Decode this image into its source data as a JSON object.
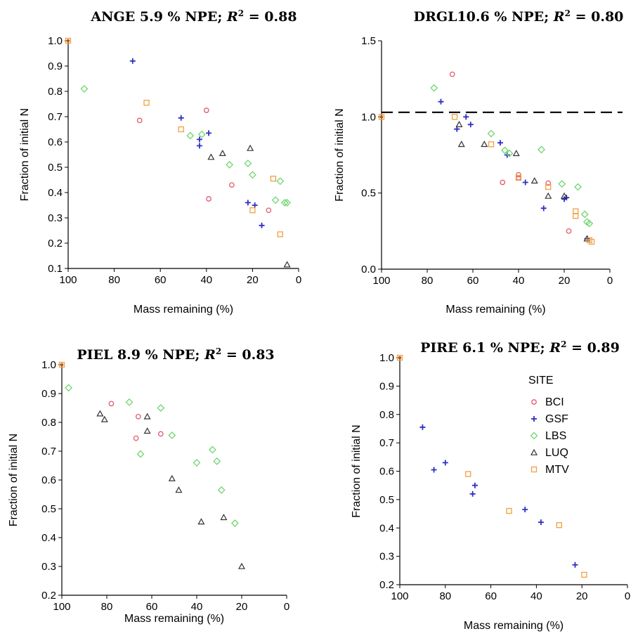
{
  "legend": {
    "title": "SITE",
    "entries": [
      {
        "name": "BCI",
        "color": "#e05a6e",
        "marker": "circle"
      },
      {
        "name": "GSF",
        "color": "#2f2fc4",
        "marker": "plus"
      },
      {
        "name": "LBS",
        "color": "#6fd66f",
        "marker": "diamond"
      },
      {
        "name": "LUQ",
        "color": "#333333",
        "marker": "triangle"
      },
      {
        "name": "MTV",
        "color": "#f0a040",
        "marker": "square"
      }
    ]
  },
  "chart_data": [
    {
      "type": "scatter",
      "title": "ANGE 5.9 % NPE; R² = 0.88",
      "title_parts": {
        "label": "ANGE 5.9 % NPE;",
        "r2_symbol": "R",
        "r2_sup": "2",
        "r2_eq": "= 0.88"
      },
      "xlabel": "Mass remaining (%)",
      "ylabel": "Fraction of initial N",
      "xlim": [
        100,
        0
      ],
      "ylim": [
        0.1,
        1.0
      ],
      "xticks": [
        100,
        80,
        60,
        40,
        20,
        0
      ],
      "xtick_labels": [
        "100",
        "80",
        "60",
        "40",
        "20",
        "0"
      ],
      "yticks": [
        0.1,
        0.2,
        0.3,
        0.4,
        0.5,
        0.6,
        0.7,
        0.8,
        0.9,
        1.0
      ],
      "ytick_labels": [
        "0.1",
        "0.2",
        "0.3",
        "0.4",
        "0.5",
        "0.6",
        "0.7",
        "0.8",
        "0.9",
        "1.0"
      ],
      "series": [
        {
          "name": "BCI",
          "points": [
            [
              69,
              0.685
            ],
            [
              40,
              0.725
            ],
            [
              39,
              0.375
            ],
            [
              29,
              0.43
            ],
            [
              13,
              0.33
            ]
          ]
        },
        {
          "name": "GSF",
          "points": [
            [
              72,
              0.92
            ],
            [
              51,
              0.695
            ],
            [
              43,
              0.61
            ],
            [
              43,
              0.585
            ],
            [
              39,
              0.635
            ],
            [
              22,
              0.36
            ],
            [
              19,
              0.35
            ],
            [
              16,
              0.27
            ]
          ]
        },
        {
          "name": "LBS",
          "points": [
            [
              93,
              0.81
            ],
            [
              47,
              0.625
            ],
            [
              42,
              0.63
            ],
            [
              30,
              0.51
            ],
            [
              22,
              0.515
            ],
            [
              20,
              0.47
            ],
            [
              10,
              0.37
            ],
            [
              8,
              0.445
            ],
            [
              6,
              0.36
            ],
            [
              5,
              0.36
            ]
          ]
        },
        {
          "name": "LUQ",
          "points": [
            [
              38,
              0.54
            ],
            [
              33,
              0.555
            ],
            [
              21,
              0.575
            ],
            [
              5,
              0.115
            ]
          ]
        },
        {
          "name": "MTV",
          "points": [
            [
              66,
              0.755
            ],
            [
              51,
              0.65
            ],
            [
              20,
              0.33
            ],
            [
              11,
              0.455
            ],
            [
              8,
              0.235
            ],
            [
              100,
              1.0
            ]
          ]
        }
      ]
    },
    {
      "type": "scatter",
      "title": "DRGL 10.6 % NPE; R² = 0.80",
      "title_parts": {
        "label": "DRGL10.6 % NPE;",
        "r2_symbol": "R",
        "r2_sup": "2",
        "r2_eq": "= 0.80"
      },
      "xlabel": "Mass remaining (%)",
      "ylabel": "Fraction of initial N",
      "xlim": [
        100,
        0
      ],
      "ylim": [
        0,
        1.5
      ],
      "xticks": [
        100,
        80,
        60,
        40,
        20,
        0
      ],
      "xtick_labels": [
        "100",
        "80",
        "60",
        "40",
        "20",
        "0"
      ],
      "yticks": [
        0,
        0.5,
        1.0,
        1.5
      ],
      "ytick_labels": [
        "0.0",
        "0.5",
        "1.0",
        "1.5"
      ],
      "reference_line": {
        "y": 1.03,
        "style": "dashed"
      },
      "series": [
        {
          "name": "BCI",
          "points": [
            [
              69,
              1.28
            ],
            [
              47,
              0.57
            ],
            [
              40,
              0.62
            ],
            [
              40,
              0.6
            ],
            [
              27,
              0.565
            ],
            [
              18,
              0.25
            ]
          ]
        },
        {
          "name": "GSF",
          "points": [
            [
              74,
              1.1
            ],
            [
              67,
              0.92
            ],
            [
              63,
              1.0
            ],
            [
              61,
              0.95
            ],
            [
              48,
              0.83
            ],
            [
              45,
              0.75
            ],
            [
              37,
              0.57
            ],
            [
              29,
              0.4
            ],
            [
              20,
              0.46
            ],
            [
              19,
              0.47
            ],
            [
              10,
              0.2
            ]
          ]
        },
        {
          "name": "LBS",
          "points": [
            [
              77,
              1.19
            ],
            [
              52,
              0.89
            ],
            [
              46,
              0.78
            ],
            [
              44,
              0.76
            ],
            [
              30,
              0.785
            ],
            [
              21,
              0.56
            ],
            [
              14,
              0.54
            ],
            [
              11,
              0.36
            ],
            [
              10,
              0.31
            ],
            [
              9,
              0.3
            ]
          ]
        },
        {
          "name": "LUQ",
          "points": [
            [
              66,
              0.95
            ],
            [
              65,
              0.82
            ],
            [
              55,
              0.82
            ],
            [
              41,
              0.76
            ],
            [
              33,
              0.58
            ],
            [
              27,
              0.48
            ],
            [
              20,
              0.48
            ],
            [
              10,
              0.2
            ]
          ]
        },
        {
          "name": "MTV",
          "points": [
            [
              68,
              1.0
            ],
            [
              52,
              0.82
            ],
            [
              40,
              0.6
            ],
            [
              27,
              0.54
            ],
            [
              15,
              0.38
            ],
            [
              15,
              0.35
            ],
            [
              9,
              0.19
            ],
            [
              8,
              0.18
            ],
            [
              100,
              1.0
            ]
          ]
        }
      ]
    },
    {
      "type": "scatter",
      "title": "PIEL 8.9 % NPE; R² = 0.83",
      "title_parts": {
        "label": "PIEL 8.9 % NPE;",
        "r2_symbol": "R",
        "r2_sup": "2",
        "r2_eq": "= 0.83"
      },
      "xlabel": "Mass remaining (%)",
      "ylabel": "Fraction of initial N",
      "xlim": [
        100,
        0
      ],
      "ylim": [
        0.2,
        1.0
      ],
      "xticks": [
        100,
        80,
        60,
        40,
        20,
        0
      ],
      "xtick_labels": [
        "100",
        "80",
        "60",
        "40",
        "20",
        "0"
      ],
      "yticks": [
        0.2,
        0.3,
        0.4,
        0.5,
        0.6,
        0.7,
        0.8,
        0.9,
        1.0
      ],
      "ytick_labels": [
        "0.2",
        "0.3",
        "0.4",
        "0.5",
        "0.6",
        "0.7",
        "0.8",
        "0.9",
        "1.0"
      ],
      "series": [
        {
          "name": "BCI",
          "points": [
            [
              78,
              0.865
            ],
            [
              66,
              0.82
            ],
            [
              67,
              0.745
            ],
            [
              56,
              0.76
            ]
          ]
        },
        {
          "name": "GSF",
          "points": []
        },
        {
          "name": "LBS",
          "points": [
            [
              97,
              0.92
            ],
            [
              70,
              0.87
            ],
            [
              65,
              0.69
            ],
            [
              56,
              0.85
            ],
            [
              51,
              0.755
            ],
            [
              40,
              0.66
            ],
            [
              33,
              0.705
            ],
            [
              31,
              0.665
            ],
            [
              29,
              0.565
            ],
            [
              23,
              0.45
            ]
          ]
        },
        {
          "name": "LUQ",
          "points": [
            [
              83,
              0.83
            ],
            [
              81,
              0.81
            ],
            [
              62,
              0.77
            ],
            [
              62,
              0.82
            ],
            [
              51,
              0.605
            ],
            [
              48,
              0.565
            ],
            [
              38,
              0.455
            ],
            [
              28,
              0.47
            ],
            [
              20,
              0.3
            ]
          ]
        },
        {
          "name": "MTV",
          "points": [
            [
              100,
              1.0
            ]
          ]
        }
      ]
    },
    {
      "type": "scatter",
      "title": "PIRE 6.1 % NPE; R² = 0.89",
      "title_parts": {
        "label": "PIRE 6.1 % NPE;",
        "r2_symbol": "R",
        "r2_sup": "2",
        "r2_eq": "= 0.89"
      },
      "xlabel": "Mass remaining (%)",
      "ylabel": "Fraction of initial N",
      "xlim": [
        100,
        0
      ],
      "ylim": [
        0.2,
        1.0
      ],
      "xticks": [
        100,
        80,
        60,
        40,
        20,
        0
      ],
      "xtick_labels": [
        "100",
        "80",
        "60",
        "40",
        "20",
        "0"
      ],
      "yticks": [
        0.2,
        0.3,
        0.4,
        0.5,
        0.6,
        0.7,
        0.8,
        0.9,
        1.0
      ],
      "ytick_labels": [
        "0.2",
        "0.3",
        "0.4",
        "0.5",
        "0.6",
        "0.7",
        "0.8",
        "0.9",
        "1.0"
      ],
      "legend_position": "upper-right",
      "series": [
        {
          "name": "BCI",
          "points": []
        },
        {
          "name": "GSF",
          "points": [
            [
              90,
              0.755
            ],
            [
              85,
              0.605
            ],
            [
              80,
              0.63
            ],
            [
              68,
              0.52
            ],
            [
              67,
              0.55
            ],
            [
              45,
              0.465
            ],
            [
              38,
              0.42
            ],
            [
              23,
              0.27
            ]
          ]
        },
        {
          "name": "LBS",
          "points": []
        },
        {
          "name": "LUQ",
          "points": []
        },
        {
          "name": "MTV",
          "points": [
            [
              70,
              0.59
            ],
            [
              52,
              0.46
            ],
            [
              30,
              0.41
            ],
            [
              19,
              0.235
            ],
            [
              100,
              1.0
            ]
          ]
        }
      ]
    }
  ]
}
